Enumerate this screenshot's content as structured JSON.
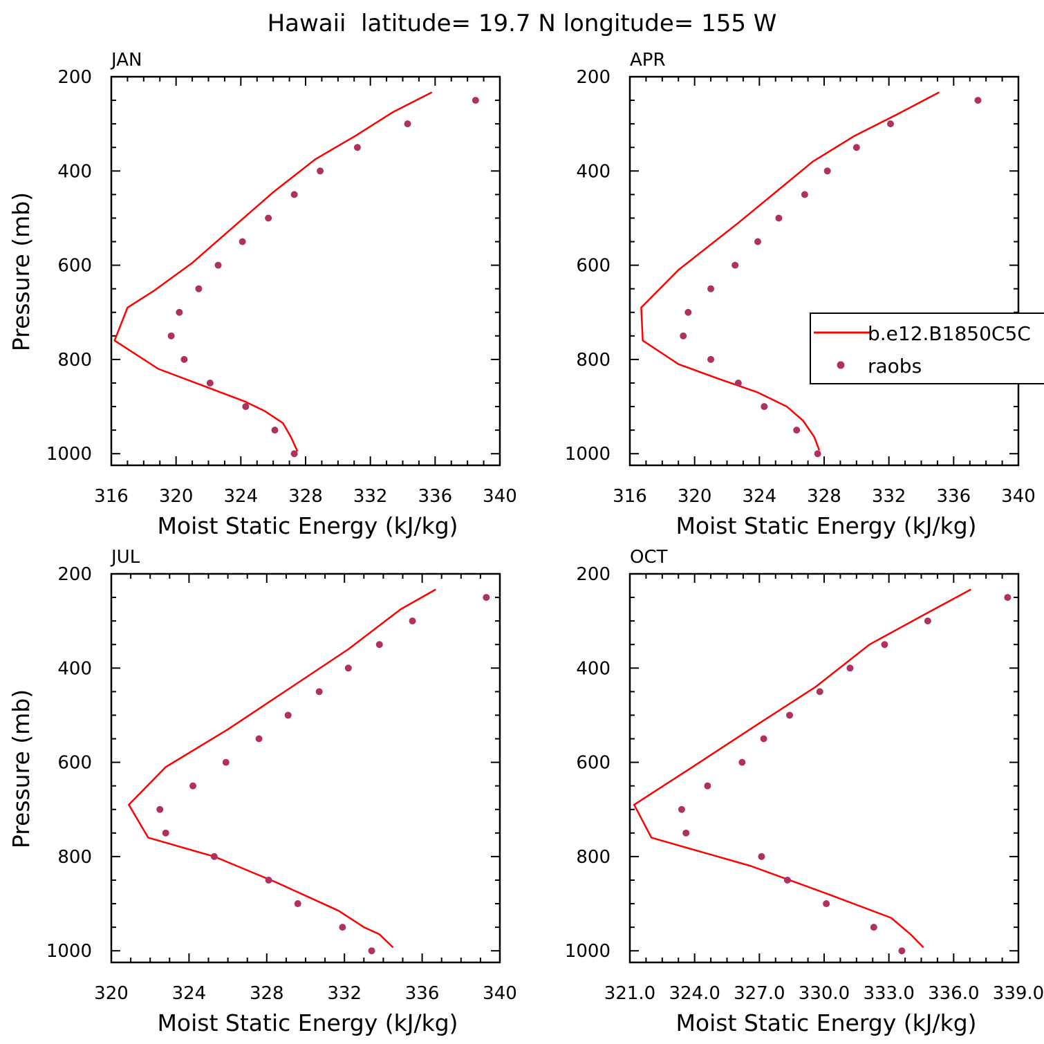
{
  "title": "Hawaii  latitude= 19.7 N longitude= 155 W",
  "legend": {
    "entries": [
      {
        "label": "b.e12.B1850C5C",
        "kind": "line",
        "color": "#ff0000"
      },
      {
        "label": "raobs",
        "kind": "marker",
        "color": "#b03060"
      }
    ]
  },
  "colors": {
    "model": "#ff0000",
    "obs": "#b03060"
  },
  "chart_data": [
    {
      "panel": "JAN",
      "type": "line",
      "xlabel": "Moist Static Energy (kJ/kg)",
      "ylabel": "Pressure (mb)",
      "xlim": [
        316,
        340
      ],
      "ylim": [
        1025,
        200
      ],
      "y_reversed": true,
      "xticks": [
        316,
        320,
        324,
        328,
        332,
        336,
        340
      ],
      "xtick_labels": [
        "316",
        "320",
        "324",
        "328",
        "332",
        "336",
        "340"
      ],
      "yticks": [
        200,
        400,
        600,
        800,
        1000
      ],
      "yticklabels": [
        "200",
        "400",
        "600",
        "800",
        "1000"
      ],
      "series": [
        {
          "name": "b.e12.B1850C5C",
          "kind": "line",
          "x": [
            335.8,
            333.4,
            331.1,
            328.6,
            326.0,
            323.5,
            321.0,
            318.6,
            317.0,
            316.2,
            318.9,
            322.0,
            324.3,
            325.5,
            326.6,
            327.1,
            327.5
          ],
          "y": [
            233,
            275,
            325,
            375,
            445,
            520,
            595,
            655,
            690,
            760,
            820,
            860,
            890,
            910,
            935,
            965,
            995
          ]
        },
        {
          "name": "raobs",
          "kind": "scatter",
          "x": [
            338.5,
            334.3,
            331.2,
            328.9,
            327.3,
            325.7,
            324.1,
            322.6,
            321.4,
            320.2,
            319.7,
            320.5,
            322.1,
            324.3,
            326.1,
            327.3
          ],
          "y": [
            250,
            300,
            350,
            400,
            450,
            500,
            550,
            600,
            650,
            700,
            750,
            800,
            850,
            900,
            950,
            1000
          ]
        }
      ]
    },
    {
      "panel": "APR",
      "type": "line",
      "xlabel": "Moist Static Energy (kJ/kg)",
      "ylabel": "",
      "xlim": [
        316,
        340
      ],
      "ylim": [
        1025,
        200
      ],
      "y_reversed": true,
      "xticks": [
        316,
        320,
        324,
        328,
        332,
        336,
        340
      ],
      "xtick_labels": [
        "316",
        "320",
        "324",
        "328",
        "332",
        "336",
        "340"
      ],
      "yticks": [
        200,
        400,
        600,
        800,
        1000
      ],
      "yticklabels": [
        "200",
        "400",
        "600",
        "800",
        "1000"
      ],
      "series": [
        {
          "name": "b.e12.B1850C5C",
          "kind": "line",
          "x": [
            335.1,
            332.5,
            329.9,
            327.3,
            325.0,
            322.7,
            319.0,
            316.7,
            316.8,
            319.0,
            321.4,
            323.9,
            325.7,
            326.7,
            327.4,
            327.7
          ],
          "y": [
            233,
            280,
            325,
            380,
            445,
            510,
            610,
            690,
            760,
            810,
            840,
            870,
            900,
            930,
            965,
            993
          ]
        },
        {
          "name": "raobs",
          "kind": "scatter",
          "x": [
            337.5,
            332.1,
            330.0,
            328.2,
            326.8,
            325.2,
            323.9,
            322.5,
            321.0,
            319.6,
            319.3,
            321.0,
            322.7,
            324.3,
            326.3,
            327.6
          ],
          "y": [
            250,
            300,
            350,
            400,
            450,
            500,
            550,
            600,
            650,
            700,
            750,
            800,
            850,
            900,
            950,
            1000
          ]
        }
      ]
    },
    {
      "panel": "JUL",
      "type": "line",
      "xlabel": "Moist Static Energy (kJ/kg)",
      "ylabel": "Pressure (mb)",
      "xlim": [
        320,
        340
      ],
      "ylim": [
        1025,
        200
      ],
      "y_reversed": true,
      "xticks": [
        320,
        324,
        328,
        332,
        336,
        340
      ],
      "xtick_labels": [
        "320",
        "324",
        "328",
        "332",
        "336",
        "340"
      ],
      "yticks": [
        200,
        400,
        600,
        800,
        1000
      ],
      "yticklabels": [
        "200",
        "400",
        "600",
        "800",
        "1000"
      ],
      "series": [
        {
          "name": "b.e12.B1850C5C",
          "kind": "line",
          "x": [
            336.7,
            334.9,
            332.2,
            329.1,
            326.0,
            322.8,
            320.9,
            321.9,
            325.3,
            328.5,
            331.7,
            333.0,
            333.8,
            334.5
          ],
          "y": [
            233,
            275,
            360,
            445,
            530,
            610,
            690,
            760,
            800,
            855,
            915,
            950,
            965,
            993
          ]
        },
        {
          "name": "raobs",
          "kind": "scatter",
          "x": [
            339.3,
            335.5,
            333.8,
            332.2,
            330.7,
            329.1,
            327.6,
            325.9,
            324.2,
            322.5,
            322.8,
            325.3,
            328.1,
            329.6,
            331.9,
            333.4
          ],
          "y": [
            250,
            300,
            350,
            400,
            450,
            500,
            550,
            600,
            650,
            700,
            750,
            800,
            850,
            900,
            950,
            1000
          ]
        }
      ]
    },
    {
      "panel": "OCT",
      "type": "line",
      "xlabel": "Moist Static Energy (kJ/kg)",
      "ylabel": "",
      "xlim": [
        321,
        339
      ],
      "ylim": [
        1025,
        200
      ],
      "y_reversed": true,
      "xticks": [
        321,
        324,
        327,
        330,
        333,
        336,
        339
      ],
      "xtick_labels": [
        "321.0",
        "324.0",
        "327.0",
        "330.0",
        "333.0",
        "336.0",
        "339.0"
      ],
      "yticks": [
        200,
        400,
        600,
        800,
        1000
      ],
      "yticklabels": [
        "200",
        "400",
        "600",
        "800",
        "1000"
      ],
      "series": [
        {
          "name": "b.e12.B1850C5C",
          "kind": "line",
          "x": [
            336.8,
            334.9,
            332.1,
            329.6,
            326.9,
            323.9,
            321.2,
            322.0,
            326.6,
            330.2,
            333.1,
            334.0,
            334.6
          ],
          "y": [
            233,
            280,
            350,
            440,
            520,
            610,
            690,
            760,
            820,
            880,
            930,
            965,
            993
          ]
        },
        {
          "name": "raobs",
          "kind": "scatter",
          "x": [
            338.5,
            334.8,
            332.8,
            331.2,
            329.8,
            328.4,
            327.2,
            326.2,
            324.6,
            323.4,
            323.6,
            327.1,
            328.3,
            330.1,
            332.3,
            333.6
          ],
          "y": [
            250,
            300,
            350,
            400,
            450,
            500,
            550,
            600,
            650,
            700,
            750,
            800,
            850,
            900,
            950,
            1000
          ]
        }
      ]
    }
  ]
}
